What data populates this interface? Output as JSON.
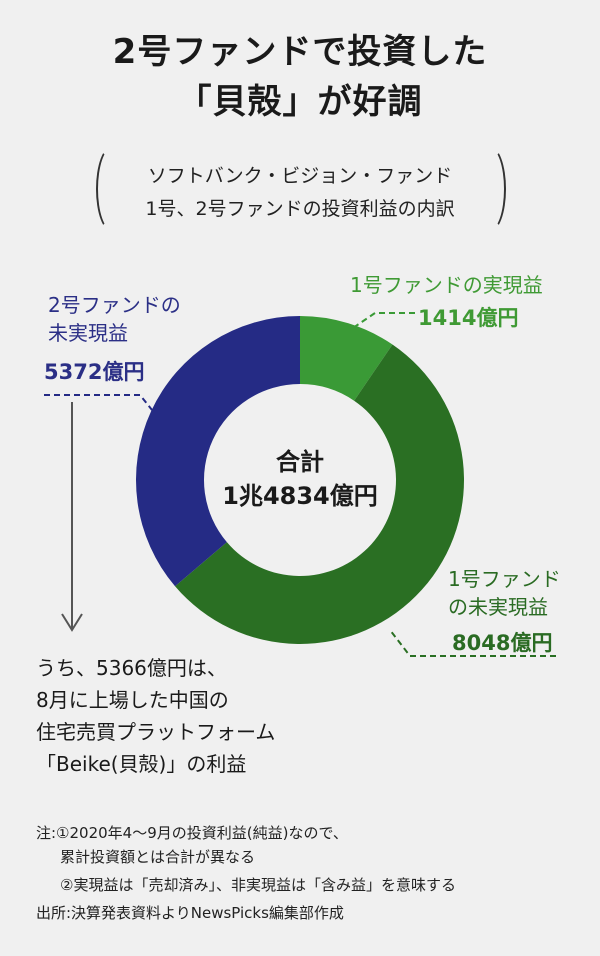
{
  "title": {
    "line1": "2号ファンドで投資した",
    "line2": "「貝殻」が好調"
  },
  "subtitle": {
    "line1": "ソフトバンク・ビジョン・ファンド",
    "line2": "1号、2号ファンドの投資利益の内訳"
  },
  "center": {
    "label": "合計",
    "total": "1兆4834億円"
  },
  "colors": {
    "navy": "#252b85",
    "green_light": "#3a9a36",
    "green_dark": "#2a6f23"
  },
  "chart_data": {
    "type": "pie",
    "unit": "億円",
    "total_label": "1兆4834億円",
    "slices": [
      {
        "name": "1号ファンドの実現益",
        "value": 1414,
        "value_label": "1414億円",
        "color": "#3a9a36"
      },
      {
        "name": "1号ファンドの未実現益",
        "value": 8048,
        "value_label": "8048億円",
        "color": "#2a6f23"
      },
      {
        "name": "2号ファンドの未実現益",
        "value": 5372,
        "value_label": "5372億円",
        "color": "#252b85"
      }
    ],
    "labels": {
      "fund2_unrealized": {
        "line1": "2号ファンドの",
        "line2": "未実現益",
        "value": "5372億円"
      },
      "fund1_realized": {
        "line1": "1号ファンドの実現益",
        "value": "1414億円"
      },
      "fund1_unrealized": {
        "line1": "1号ファンド",
        "line2": "の未実現益",
        "value": "8048億円"
      }
    },
    "annotation": {
      "line1": "うち、5366億円は、",
      "line2": "8月に上場した中国の",
      "line3": "住宅売買プラットフォーム",
      "line4": "「Beike(貝殻)」の利益"
    }
  },
  "notes": {
    "note1": "注:①2020年4〜9月の投資利益(純益)なので、",
    "note1b": "累計投資額とは合計が異なる",
    "note2": "②実現益は「売却済み」、非実現益は「含み益」を意味する",
    "source": "出所:決算発表資料よりNewsPicks編集部作成"
  }
}
